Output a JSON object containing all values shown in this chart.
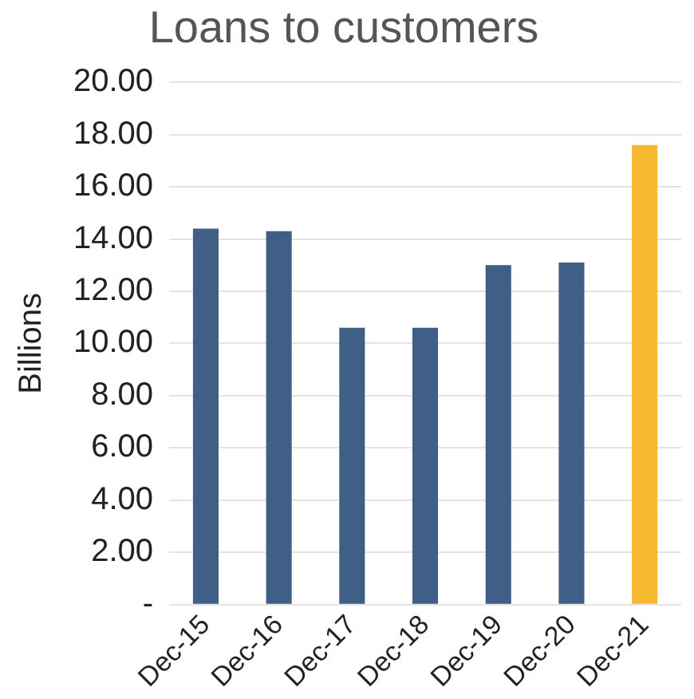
{
  "chart_data": {
    "type": "bar",
    "title": "Loans to customers",
    "ylabel": "Billions",
    "categories": [
      "Dec-15",
      "Dec-16",
      "Dec-17",
      "Dec-18",
      "Dec-19",
      "Dec-20",
      "Dec-21"
    ],
    "values": [
      14.4,
      14.3,
      10.6,
      10.6,
      13.0,
      13.1,
      17.6
    ],
    "colors": [
      "#3f5f86",
      "#3f5f86",
      "#3f5f86",
      "#3f5f86",
      "#3f5f86",
      "#3f5f86",
      "#f5b82e"
    ],
    "ylim": [
      0,
      20
    ],
    "yticks": [
      {
        "value": 0,
        "label": "-"
      },
      {
        "value": 2,
        "label": "2.00"
      },
      {
        "value": 4,
        "label": "4.00"
      },
      {
        "value": 6,
        "label": "6.00"
      },
      {
        "value": 8,
        "label": "8.00"
      },
      {
        "value": 10,
        "label": "10.00"
      },
      {
        "value": 12,
        "label": "12.00"
      },
      {
        "value": 14,
        "label": "14.00"
      },
      {
        "value": 16,
        "label": "16.00"
      },
      {
        "value": 18,
        "label": "18.00"
      },
      {
        "value": 20,
        "label": "20.00"
      }
    ],
    "grid": "y",
    "legend": false
  }
}
